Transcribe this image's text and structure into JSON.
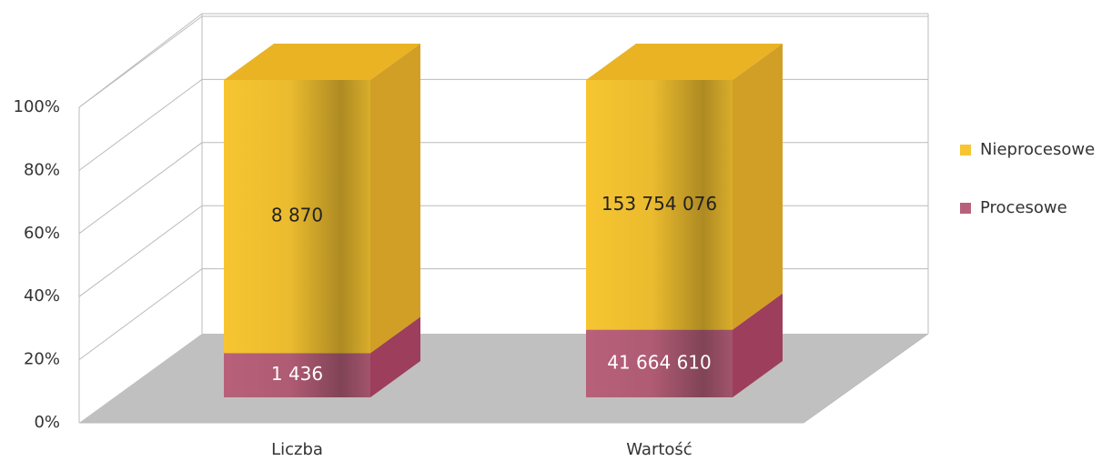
{
  "chart_data": {
    "type": "bar_3d_stacked_percent",
    "categories": [
      "Liczba",
      "Wartość"
    ],
    "series": [
      {
        "name": "Procesowe",
        "color": "#b8607a",
        "values": [
          1436,
          41664610
        ],
        "value_labels": [
          "1 436",
          "41 664 610"
        ]
      },
      {
        "name": "Nieprocesowe",
        "color": "#f7c531",
        "values": [
          8870,
          153754076
        ],
        "value_labels": [
          "8 870",
          "153 754 076"
        ]
      }
    ],
    "ylim": [
      0,
      100
    ],
    "yticks": [
      {
        "value": 0,
        "label": "0%"
      },
      {
        "value": 20,
        "label": "20%"
      },
      {
        "value": 40,
        "label": "40%"
      },
      {
        "value": 60,
        "label": "60%"
      },
      {
        "value": 80,
        "label": "80%"
      },
      {
        "value": 100,
        "label": "100%"
      }
    ],
    "grid": true,
    "legend": "right"
  }
}
